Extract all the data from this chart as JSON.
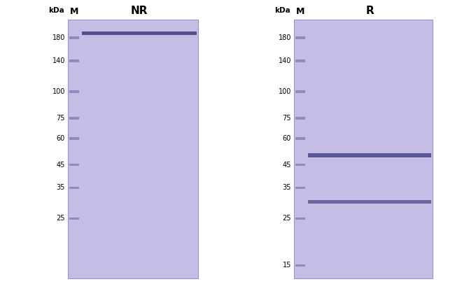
{
  "background_color": "#ffffff",
  "gel_bg_color": "#c5bde6",
  "marker_band_color": "#8a84bb",
  "band_color_dark": "#4a4888",
  "left_panel": {
    "title": "NR",
    "kda_label": "kDa",
    "m_label": "M",
    "marker_labels": [
      "180",
      "140",
      "100",
      "75",
      "60",
      "45",
      "35",
      "25"
    ],
    "marker_positions": [
      180,
      140,
      100,
      75,
      60,
      45,
      35,
      25
    ],
    "nr_band_kda": 190
  },
  "right_panel": {
    "title": "R",
    "kda_label": "kDa",
    "m_label": "M",
    "marker_labels": [
      "180",
      "140",
      "100",
      "75",
      "60",
      "45",
      "35",
      "25",
      "15"
    ],
    "marker_positions": [
      180,
      140,
      100,
      75,
      60,
      45,
      35,
      25,
      15
    ],
    "heavy_chain_kda": 50,
    "light_chain_kda": 30
  },
  "ymin": 13,
  "ymax": 220
}
